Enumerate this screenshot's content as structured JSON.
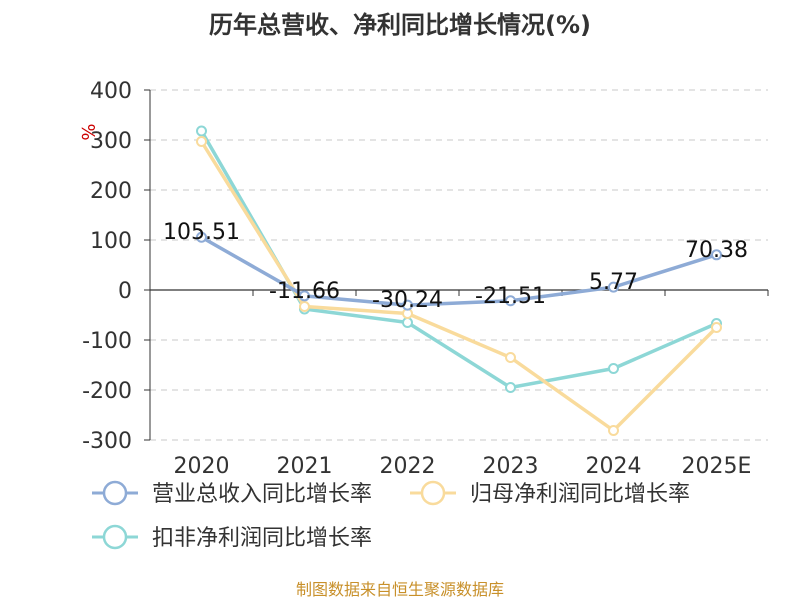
{
  "chart_data": {
    "type": "line",
    "title": "历年总营收、净利同比增长情况(%)",
    "ylabel": "%",
    "categories": [
      "2020",
      "2021",
      "2022",
      "2023",
      "2024",
      "2025E"
    ],
    "ylim": [
      -300,
      400
    ],
    "yticks": [
      400,
      300,
      200,
      100,
      0,
      -100,
      -200,
      -300
    ],
    "grid": true,
    "legend_position": "bottom-left",
    "series": [
      {
        "name": "营业总收入同比增长率",
        "color": "#8eabd6",
        "values": [
          105.51,
          -11.66,
          -30.24,
          -21.51,
          5.77,
          70.38
        ],
        "labels": [
          "105.51",
          "-11.66",
          "-30.24",
          "-21.51",
          "5.77",
          "70.38"
        ]
      },
      {
        "name": "归母净利润同比增长率",
        "color": "#f9db9c",
        "values": [
          297,
          -33,
          -47,
          -135,
          -281,
          -75
        ]
      },
      {
        "name": "扣非净利润同比增长率",
        "color": "#8dd7d6",
        "values": [
          318,
          -38,
          -65,
          -195,
          -157,
          -67
        ]
      }
    ]
  },
  "source": "制图数据来自恒生聚源数据库"
}
